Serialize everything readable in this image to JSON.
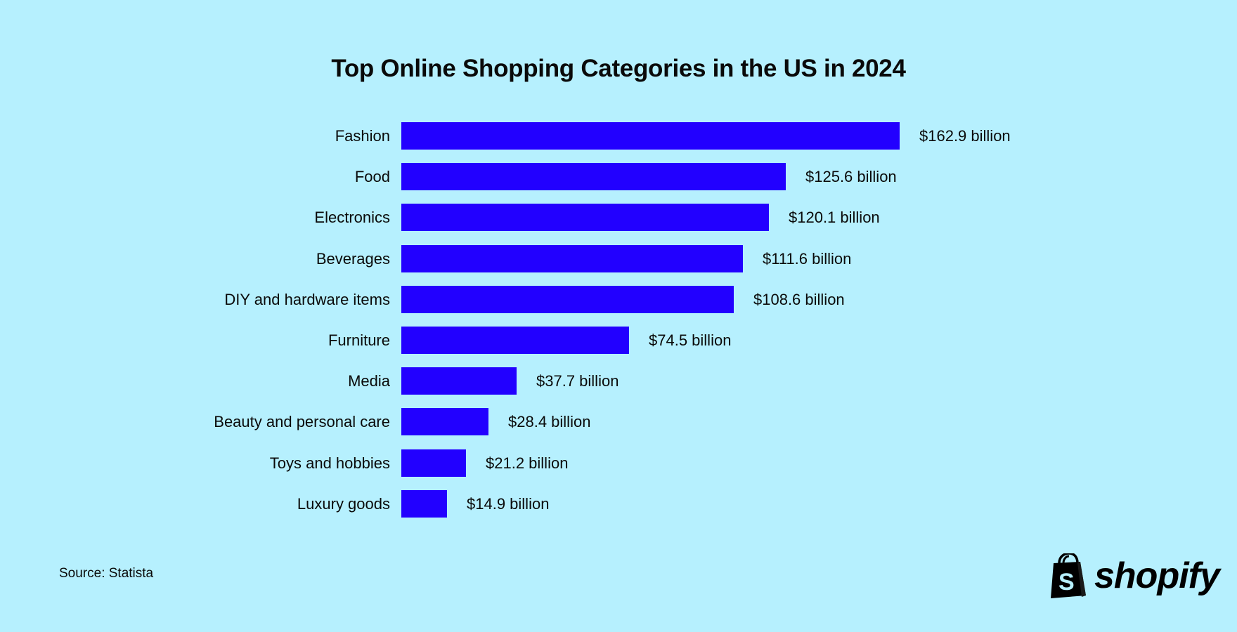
{
  "title": "Top Online Shopping Categories in the US in 2024",
  "source": "Source: Statista",
  "brand": {
    "name": "shopify",
    "icon": "shopping-bag-icon"
  },
  "colors": {
    "background": "#B6F0FE",
    "bar": "#2200FF",
    "text": "#0a0a0a"
  },
  "rows": [
    {
      "label": "Fashion",
      "value": 162.9,
      "display": "$162.9 billion"
    },
    {
      "label": "Food",
      "value": 125.6,
      "display": "$125.6 billion"
    },
    {
      "label": "Electronics",
      "value": 120.1,
      "display": "$120.1 billion"
    },
    {
      "label": "Beverages",
      "value": 111.6,
      "display": "$111.6 billion"
    },
    {
      "label": "DIY and hardware items",
      "value": 108.6,
      "display": "$108.6 billion"
    },
    {
      "label": "Furniture",
      "value": 74.5,
      "display": "$74.5 billion"
    },
    {
      "label": "Media",
      "value": 37.7,
      "display": "$37.7 billion"
    },
    {
      "label": "Beauty and personal care",
      "value": 28.4,
      "display": "$28.4 billion"
    },
    {
      "label": "Toys and hobbies",
      "value": 21.2,
      "display": "$21.2 billion"
    },
    {
      "label": "Luxury goods",
      "value": 14.9,
      "display": "$14.9 billion"
    }
  ],
  "chart_data": {
    "type": "bar",
    "orientation": "horizontal",
    "title": "Top Online Shopping Categories in the US in 2024",
    "categories": [
      "Fashion",
      "Food",
      "Electronics",
      "Beverages",
      "DIY and hardware items",
      "Furniture",
      "Media",
      "Beauty and personal care",
      "Toys and hobbies",
      "Luxury goods"
    ],
    "values": [
      162.9,
      125.6,
      120.1,
      111.6,
      108.6,
      74.5,
      37.7,
      28.4,
      21.2,
      14.9
    ],
    "data_labels": [
      "$162.9 billion",
      "$125.6 billion",
      "$120.1 billion",
      "$111.6 billion",
      "$108.6 billion",
      "$74.5 billion",
      "$37.7 billion",
      "$28.4 billion",
      "$21.2 billion",
      "$14.9 billion"
    ],
    "unit": "billion USD",
    "xlabel": "",
    "ylabel": "",
    "grid": false,
    "legend": null,
    "annotations": [
      "Source: Statista"
    ]
  }
}
